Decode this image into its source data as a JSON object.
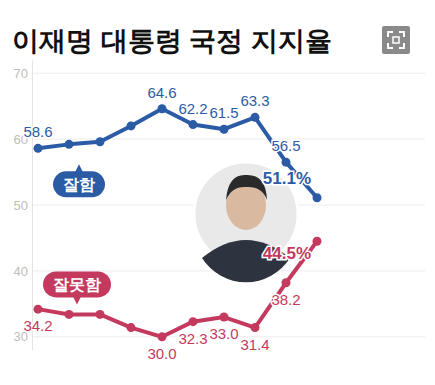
{
  "chart_data": {
    "type": "line",
    "title": "이재명 대통령 국정 지지율",
    "categories": [
      null,
      null,
      null,
      null,
      null,
      null,
      null,
      null,
      null,
      null
    ],
    "series": [
      {
        "name": "잘함",
        "color": "#2c5ba6",
        "marker": "circle",
        "values": [
          58.6,
          59.2,
          59.6,
          62.0,
          64.6,
          62.2,
          61.5,
          63.3,
          56.5,
          51.1
        ],
        "value_labels": [
          "58.6",
          null,
          null,
          null,
          "64.6",
          "62.2",
          "61.5",
          "63.3",
          "56.5",
          "51.1%"
        ]
      },
      {
        "name": "잘못함",
        "color": "#c43a5e",
        "marker": "circle",
        "values": [
          34.2,
          33.4,
          33.4,
          31.4,
          30.0,
          32.3,
          33.0,
          31.4,
          38.2,
          44.5
        ],
        "value_labels": [
          "34.2",
          null,
          null,
          null,
          "30.0",
          "32.3",
          "33.0",
          "31.4",
          "38.2",
          "44.5%"
        ]
      }
    ],
    "ylim": [
      28,
      72
    ],
    "yticks": [
      30,
      40,
      50,
      60,
      70
    ],
    "grid": true,
    "data_labels": true,
    "tick_labels": "y"
  }
}
